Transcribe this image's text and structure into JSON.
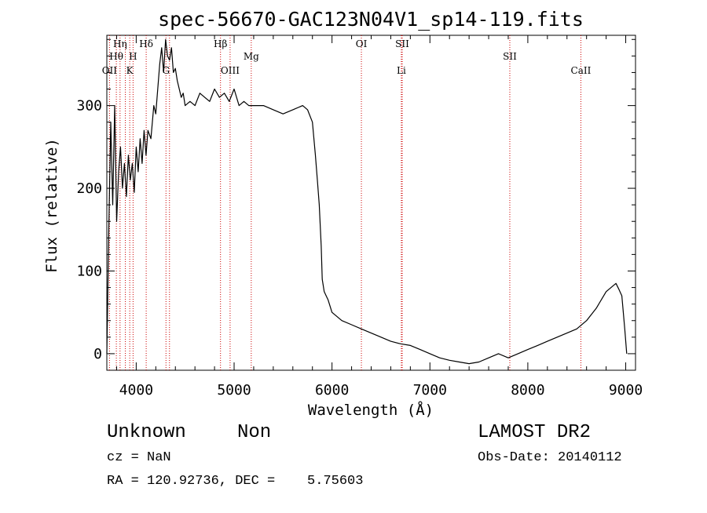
{
  "chart_data": {
    "type": "line",
    "title": "spec-56670-GAC123N04V1_sp14-119.fits",
    "xlabel": "Wavelength (Å)",
    "ylabel": "Flux (relative)",
    "xlim": [
      3700,
      9100
    ],
    "ylim": [
      -20,
      385
    ],
    "xticks": [
      4000,
      5000,
      6000,
      7000,
      8000,
      9000
    ],
    "yticks": [
      0,
      100,
      200,
      300
    ],
    "grid": false,
    "series": [
      {
        "x": [
          3700,
          3720,
          3740,
          3760,
          3780,
          3800,
          3820,
          3840,
          3860,
          3880,
          3900,
          3920,
          3940,
          3960,
          3980,
          4000,
          4020,
          4040,
          4060,
          4080,
          4100,
          4120,
          4150,
          4180,
          4200,
          4220,
          4240,
          4260,
          4280,
          4300,
          4320,
          4340,
          4360,
          4380,
          4400,
          4420,
          4440,
          4460,
          4480,
          4500,
          4550,
          4600,
          4650,
          4700,
          4750,
          4800,
          4850,
          4900,
          4950,
          5000,
          5050,
          5100,
          5150,
          5200,
          5300,
          5400,
          5500,
          5600,
          5700,
          5750,
          5800,
          5830,
          5850,
          5870,
          5890,
          5900,
          5920,
          5940,
          5960,
          6000,
          6100,
          6200,
          6300,
          6400,
          6500,
          6600,
          6700,
          6800,
          6900,
          7000,
          7100,
          7200,
          7300,
          7400,
          7500,
          7600,
          7700,
          7800,
          7900,
          8000,
          8100,
          8200,
          8300,
          8400,
          8500,
          8600,
          8700,
          8800,
          8850,
          8900,
          8930,
          8960,
          8990,
          9010
        ],
        "y": [
          0,
          150,
          280,
          180,
          300,
          160,
          220,
          250,
          200,
          230,
          190,
          240,
          210,
          230,
          195,
          250,
          220,
          260,
          230,
          270,
          240,
          270,
          260,
          300,
          290,
          320,
          350,
          370,
          340,
          380,
          360,
          355,
          370,
          340,
          345,
          330,
          320,
          310,
          315,
          300,
          305,
          300,
          315,
          310,
          305,
          320,
          310,
          315,
          305,
          320,
          300,
          305,
          300,
          300,
          300,
          295,
          290,
          295,
          300,
          295,
          280,
          240,
          210,
          180,
          130,
          90,
          75,
          70,
          65,
          50,
          40,
          35,
          30,
          25,
          20,
          15,
          12,
          10,
          5,
          0,
          -5,
          -8,
          -10,
          -12,
          -10,
          -5,
          0,
          -5,
          0,
          5,
          10,
          15,
          20,
          25,
          30,
          40,
          55,
          75,
          80,
          85,
          78,
          70,
          30,
          0
        ]
      }
    ],
    "line_labels": [
      {
        "label": "Hη",
        "wavelength": 3835
      },
      {
        "label": "Hθ",
        "wavelength": 3797
      },
      {
        "label": "OII",
        "wavelength": 3727
      },
      {
        "label": "H",
        "wavelength": 3968
      },
      {
        "label": "K",
        "wavelength": 3934
      },
      {
        "label": "Hδ",
        "wavelength": 4102
      },
      {
        "label": "G",
        "wavelength": 4304
      },
      {
        "label": "Hβ",
        "wavelength": 4861
      },
      {
        "label": "OIII",
        "wavelength": 4959
      },
      {
        "label": "Mg",
        "wavelength": 5175
      },
      {
        "label": "OI",
        "wavelength": 6300
      },
      {
        "label": "SII",
        "wavelength": 6717
      },
      {
        "label": "Li",
        "wavelength": 6708
      },
      {
        "label": "SII",
        "wavelength": 7816
      },
      {
        "label": "CaII",
        "wavelength": 8542
      }
    ],
    "line_marker_wavelengths": [
      3727,
      3797,
      3835,
      3889,
      3934,
      3968,
      4102,
      4304,
      4340,
      4861,
      4959,
      5175,
      6300,
      6708,
      6717,
      7816,
      8542
    ],
    "line_color": "#cc0000",
    "spectrum_color": "#000000"
  },
  "info": {
    "class": "Unknown",
    "subclass": "Non",
    "survey": "LAMOST DR2",
    "cz": "cz = NaN",
    "obs_date": "Obs-Date: 20140112",
    "coords": "RA = 120.92736, DEC =    5.75603"
  }
}
